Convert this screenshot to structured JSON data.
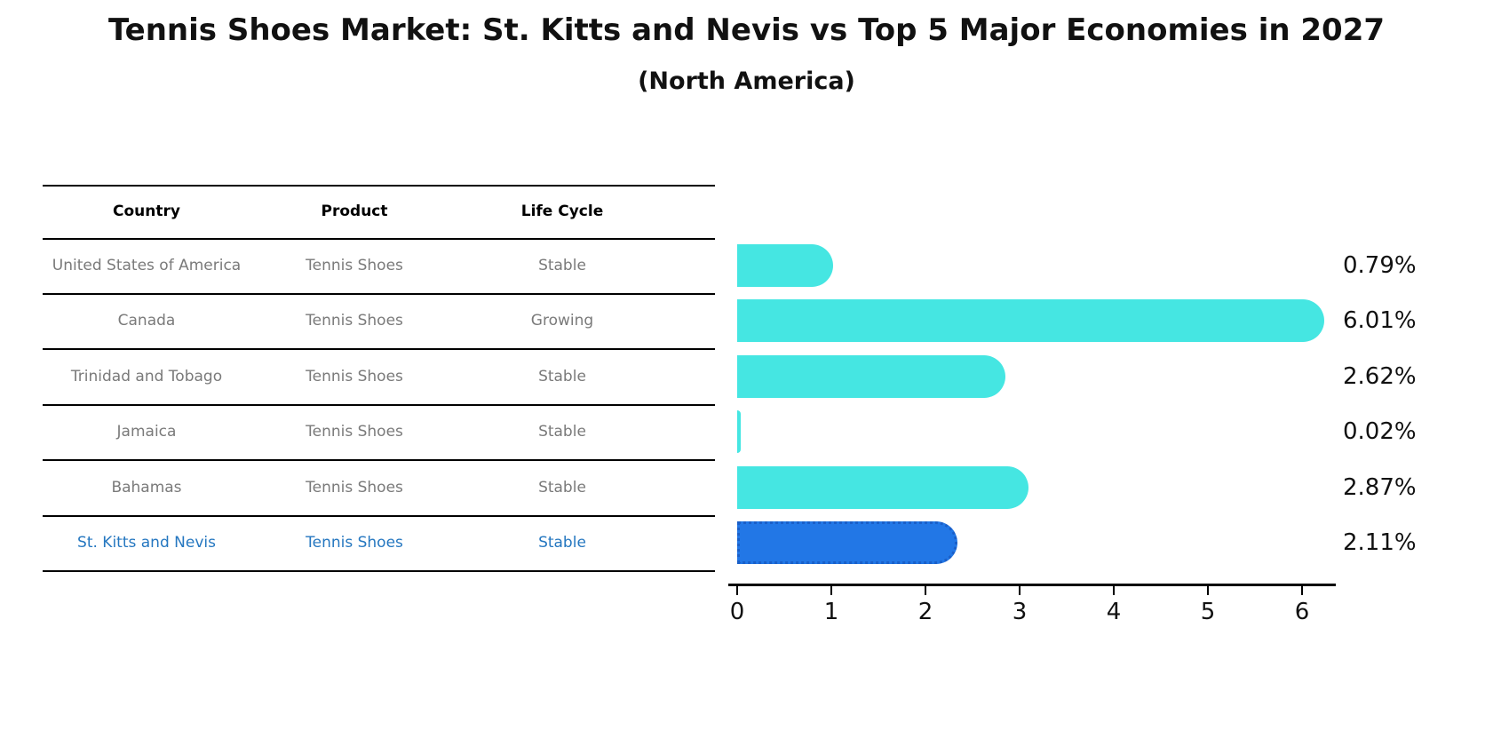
{
  "title": "Tennis Shoes Market: St. Kitts and Nevis vs Top 5 Major Economies in 2027",
  "subtitle": "(North America)",
  "table": {
    "headers": [
      "Country",
      "Product",
      "Life Cycle"
    ],
    "rows": [
      {
        "country": "United States of America",
        "product": "Tennis Shoes",
        "life_cycle": "Stable",
        "highlight": false
      },
      {
        "country": "Canada",
        "product": "Tennis Shoes",
        "life_cycle": "Growing",
        "highlight": false
      },
      {
        "country": "Trinidad and Tobago",
        "product": "Tennis Shoes",
        "life_cycle": "Stable",
        "highlight": false
      },
      {
        "country": "Jamaica",
        "product": "Tennis Shoes",
        "life_cycle": "Stable",
        "highlight": false
      },
      {
        "country": "Bahamas",
        "product": "Tennis Shoes",
        "life_cycle": "Stable",
        "highlight": false
      },
      {
        "country": "St. Kitts and Nevis",
        "product": "Tennis Shoes",
        "life_cycle": "Stable",
        "highlight": true
      }
    ]
  },
  "chart_data": {
    "type": "bar",
    "orientation": "horizontal",
    "title": "Tennis Shoes Market: St. Kitts and Nevis vs Top 5 Major Economies in 2027",
    "subtitle": "(North America)",
    "categories": [
      "United States of America",
      "Canada",
      "Trinidad and Tobago",
      "Jamaica",
      "Bahamas",
      "St. Kitts and Nevis"
    ],
    "values": [
      0.79,
      6.01,
      2.62,
      0.02,
      2.87,
      2.11
    ],
    "value_labels": [
      "0.79%",
      "6.01%",
      "2.62%",
      "0.02%",
      "2.87%",
      "2.11%"
    ],
    "x_ticks": [
      "0",
      "1",
      "2",
      "3",
      "4",
      "5",
      "6"
    ],
    "xlim": [
      0,
      6.35
    ],
    "grid": false,
    "legend": false,
    "highlight_index": 5
  },
  "colors": {
    "bar": "#45e6e2",
    "highlight_bar": "#2277e6",
    "highlight_border": "#1a5fc8",
    "highlight_text": "#2577c0",
    "gray_text": "#7a7a7a"
  }
}
